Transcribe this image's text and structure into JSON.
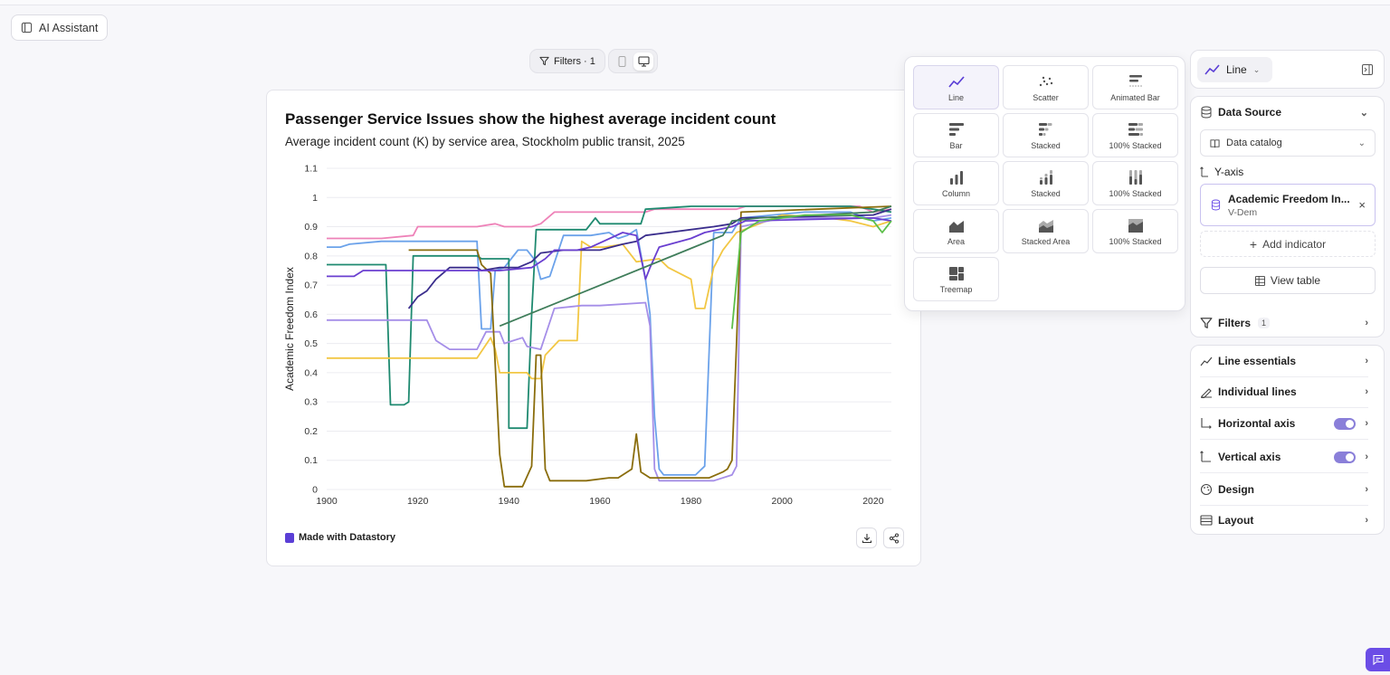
{
  "toolbar": {
    "ai_assistant_label": "AI Assistant",
    "filters_label": "Filters · 1"
  },
  "chart_card": {
    "title": "Passenger Service Issues show the highest average incident count",
    "subtitle": "Average incident count (K) by service area, Stockholm public transit, 2025",
    "brand_label": "Made with Datastory"
  },
  "chart_types": [
    {
      "label": "Line",
      "icon": "line-chart-icon",
      "selected": true
    },
    {
      "label": "Scatter",
      "icon": "scatter-icon"
    },
    {
      "label": "Animated Bar",
      "icon": "animated-bar-icon"
    },
    {
      "label": "Bar",
      "icon": "bar-icon"
    },
    {
      "label": "Stacked",
      "icon": "stacked-bar-icon"
    },
    {
      "label": "100% Stacked",
      "icon": "stacked-100-bar-icon"
    },
    {
      "label": "Column",
      "icon": "column-icon"
    },
    {
      "label": "Stacked",
      "icon": "stacked-column-icon"
    },
    {
      "label": "100% Stacked",
      "icon": "stacked-100-column-icon"
    },
    {
      "label": "Area",
      "icon": "area-icon"
    },
    {
      "label": "Stacked Area",
      "icon": "stacked-area-icon"
    },
    {
      "label": "100% Stacked",
      "icon": "stacked-100-area-icon"
    },
    {
      "label": "Treemap",
      "icon": "treemap-icon"
    }
  ],
  "sidebar": {
    "chart_type_label": "Line",
    "data_source_label": "Data Source",
    "data_catalog_label": "Data catalog",
    "y_axis_label": "Y-axis",
    "indicator_name": "Academic Freedom In...",
    "indicator_source": "V-Dem",
    "add_indicator_label": "Add indicator",
    "view_table_label": "View table",
    "filters_label": "Filters",
    "filters_count": "1",
    "sections": [
      {
        "label": "Line essentials",
        "icon": "line-essentials-icon"
      },
      {
        "label": "Individual lines",
        "icon": "individual-lines-icon"
      },
      {
        "label": "Horizontal axis",
        "icon": "horizontal-axis-icon",
        "toggle": true
      },
      {
        "label": "Vertical axis",
        "icon": "vertical-axis-icon",
        "toggle": true
      },
      {
        "label": "Design",
        "icon": "palette-icon"
      },
      {
        "label": "Layout",
        "icon": "layout-icon"
      }
    ]
  },
  "chart_data": {
    "type": "line",
    "title": "Passenger Service Issues show the highest average incident count",
    "subtitle": "Average incident count (K) by service area, Stockholm public transit, 2025",
    "xlabel": "",
    "ylabel": "Academic Freedom Index",
    "xlim": [
      1900,
      2024
    ],
    "ylim": [
      0,
      1.1
    ],
    "x_ticks": [
      1900,
      1920,
      1940,
      1960,
      1980,
      2000,
      2020
    ],
    "y_ticks": [
      0,
      0.1,
      0.2,
      0.3,
      0.4,
      0.5,
      0.6,
      0.7,
      0.8,
      0.9,
      1,
      1.1
    ],
    "grid": true,
    "legend": "none",
    "series": [
      {
        "color": "#ee82b8",
        "points": [
          [
            1900,
            0.86
          ],
          [
            1912,
            0.86
          ],
          [
            1919,
            0.87
          ],
          [
            1920,
            0.9
          ],
          [
            1933,
            0.9
          ],
          [
            1937,
            0.91
          ],
          [
            1939,
            0.9
          ],
          [
            1945,
            0.9
          ],
          [
            1947,
            0.91
          ],
          [
            1950,
            0.95
          ],
          [
            1970,
            0.95
          ],
          [
            1972,
            0.96
          ],
          [
            1990,
            0.96
          ],
          [
            1992,
            0.97
          ],
          [
            2017,
            0.97
          ],
          [
            2020,
            0.95
          ],
          [
            2024,
            0.96
          ]
        ]
      },
      {
        "color": "#6ba2ea",
        "points": [
          [
            1900,
            0.83
          ],
          [
            1903,
            0.83
          ],
          [
            1905,
            0.84
          ],
          [
            1912,
            0.85
          ],
          [
            1933,
            0.85
          ],
          [
            1934,
            0.55
          ],
          [
            1936,
            0.55
          ],
          [
            1937,
            0.75
          ],
          [
            1939,
            0.76
          ],
          [
            1940,
            0.78
          ],
          [
            1942,
            0.82
          ],
          [
            1944,
            0.82
          ],
          [
            1946,
            0.78
          ],
          [
            1947,
            0.72
          ],
          [
            1949,
            0.73
          ],
          [
            1952,
            0.87
          ],
          [
            1958,
            0.87
          ],
          [
            1962,
            0.88
          ],
          [
            1964,
            0.86
          ],
          [
            1966,
            0.87
          ],
          [
            1968,
            0.89
          ],
          [
            1970,
            0.72
          ],
          [
            1971,
            0.6
          ],
          [
            1972,
            0.25
          ],
          [
            1973,
            0.07
          ],
          [
            1974,
            0.05
          ],
          [
            1981,
            0.05
          ],
          [
            1983,
            0.08
          ],
          [
            1985,
            0.88
          ],
          [
            1989,
            0.88
          ],
          [
            1991,
            0.93
          ],
          [
            2005,
            0.95
          ],
          [
            2015,
            0.95
          ],
          [
            2020,
            0.92
          ],
          [
            2024,
            0.93
          ]
        ]
      },
      {
        "color": "#1f8a70",
        "points": [
          [
            1900,
            0.77
          ],
          [
            1913,
            0.77
          ],
          [
            1914,
            0.29
          ],
          [
            1917,
            0.29
          ],
          [
            1918,
            0.3
          ],
          [
            1919,
            0.8
          ],
          [
            1933,
            0.8
          ],
          [
            1934,
            0.79
          ],
          [
            1940,
            0.79
          ],
          [
            1940,
            0.21
          ],
          [
            1944,
            0.21
          ],
          [
            1945,
            0.6
          ],
          [
            1946,
            0.89
          ],
          [
            1957,
            0.89
          ],
          [
            1959,
            0.93
          ],
          [
            1960,
            0.91
          ],
          [
            1969,
            0.91
          ],
          [
            1970,
            0.96
          ],
          [
            1980,
            0.97
          ],
          [
            1990,
            0.97
          ],
          [
            2015,
            0.97
          ],
          [
            2020,
            0.96
          ],
          [
            2024,
            0.95
          ]
        ]
      },
      {
        "color": "#f2c744",
        "points": [
          [
            1900,
            0.45
          ],
          [
            1933,
            0.45
          ],
          [
            1936,
            0.52
          ],
          [
            1937,
            0.48
          ],
          [
            1938,
            0.4
          ],
          [
            1944,
            0.4
          ],
          [
            1945,
            0.38
          ],
          [
            1947,
            0.38
          ],
          [
            1948,
            0.46
          ],
          [
            1951,
            0.51
          ],
          [
            1955,
            0.51
          ],
          [
            1956,
            0.85
          ],
          [
            1958,
            0.83
          ],
          [
            1961,
            0.83
          ],
          [
            1965,
            0.84
          ],
          [
            1968,
            0.78
          ],
          [
            1973,
            0.79
          ],
          [
            1975,
            0.76
          ],
          [
            1980,
            0.72
          ],
          [
            1981,
            0.62
          ],
          [
            1983,
            0.62
          ],
          [
            1985,
            0.76
          ],
          [
            1987,
            0.82
          ],
          [
            1990,
            0.88
          ],
          [
            2000,
            0.94
          ],
          [
            2010,
            0.93
          ],
          [
            2015,
            0.92
          ],
          [
            2020,
            0.9
          ],
          [
            2024,
            0.92
          ]
        ]
      },
      {
        "color": "#a58ee8",
        "points": [
          [
            1900,
            0.58
          ],
          [
            1922,
            0.58
          ],
          [
            1924,
            0.51
          ],
          [
            1927,
            0.48
          ],
          [
            1933,
            0.48
          ],
          [
            1935,
            0.54
          ],
          [
            1938,
            0.54
          ],
          [
            1939,
            0.5
          ],
          [
            1941,
            0.51
          ],
          [
            1943,
            0.52
          ],
          [
            1944,
            0.49
          ],
          [
            1947,
            0.48
          ],
          [
            1950,
            0.62
          ],
          [
            1956,
            0.63
          ],
          [
            1960,
            0.63
          ],
          [
            1970,
            0.64
          ],
          [
            1971,
            0.56
          ],
          [
            1972,
            0.07
          ],
          [
            1973,
            0.03
          ],
          [
            1985,
            0.03
          ],
          [
            1989,
            0.05
          ],
          [
            1990,
            0.08
          ],
          [
            1991,
            0.9
          ],
          [
            2000,
            0.93
          ],
          [
            2020,
            0.93
          ],
          [
            2024,
            0.94
          ]
        ]
      },
      {
        "color": "#8a6d0c",
        "points": [
          [
            1918,
            0.82
          ],
          [
            1933,
            0.82
          ],
          [
            1934,
            0.77
          ],
          [
            1936,
            0.74
          ],
          [
            1938,
            0.12
          ],
          [
            1939,
            0.01
          ],
          [
            1943,
            0.01
          ],
          [
            1945,
            0.08
          ],
          [
            1946,
            0.46
          ],
          [
            1947,
            0.46
          ],
          [
            1948,
            0.07
          ],
          [
            1949,
            0.03
          ],
          [
            1957,
            0.03
          ],
          [
            1962,
            0.04
          ],
          [
            1964,
            0.04
          ],
          [
            1967,
            0.07
          ],
          [
            1968,
            0.19
          ],
          [
            1969,
            0.06
          ],
          [
            1971,
            0.04
          ],
          [
            1984,
            0.04
          ],
          [
            1987,
            0.06
          ],
          [
            1988,
            0.07
          ],
          [
            1989,
            0.1
          ],
          [
            1990,
            0.5
          ],
          [
            1991,
            0.95
          ],
          [
            2024,
            0.97
          ]
        ]
      },
      {
        "color": "#3a2d8c",
        "points": [
          [
            1918,
            0.62
          ],
          [
            1920,
            0.66
          ],
          [
            1922,
            0.68
          ],
          [
            1924,
            0.72
          ],
          [
            1927,
            0.76
          ],
          [
            1933,
            0.76
          ],
          [
            1934,
            0.75
          ],
          [
            1938,
            0.76
          ],
          [
            1942,
            0.76
          ],
          [
            1945,
            0.78
          ],
          [
            1947,
            0.81
          ],
          [
            1952,
            0.82
          ],
          [
            1960,
            0.82
          ],
          [
            1965,
            0.84
          ],
          [
            1968,
            0.85
          ],
          [
            1970,
            0.87
          ],
          [
            1975,
            0.88
          ],
          [
            1985,
            0.9
          ],
          [
            1989,
            0.91
          ],
          [
            1991,
            0.93
          ],
          [
            2020,
            0.94
          ],
          [
            2024,
            0.96
          ]
        ]
      },
      {
        "color": "#6a3fd0",
        "points": [
          [
            1900,
            0.73
          ],
          [
            1906,
            0.73
          ],
          [
            1908,
            0.75
          ],
          [
            1920,
            0.75
          ],
          [
            1935,
            0.75
          ],
          [
            1938,
            0.75
          ],
          [
            1945,
            0.76
          ],
          [
            1948,
            0.79
          ],
          [
            1950,
            0.82
          ],
          [
            1955,
            0.82
          ],
          [
            1958,
            0.83
          ],
          [
            1965,
            0.88
          ],
          [
            1968,
            0.87
          ],
          [
            1970,
            0.72
          ],
          [
            1971,
            0.76
          ],
          [
            1973,
            0.83
          ],
          [
            1980,
            0.86
          ],
          [
            1983,
            0.88
          ],
          [
            1989,
            0.9
          ],
          [
            1992,
            0.92
          ],
          [
            2020,
            0.93
          ],
          [
            2024,
            0.92
          ]
        ]
      },
      {
        "color": "#3f7d5a",
        "points": [
          [
            1938,
            0.56
          ],
          [
            1987,
            0.87
          ],
          [
            1989,
            0.92
          ],
          [
            1995,
            0.93
          ],
          [
            2020,
            0.95
          ],
          [
            2024,
            0.97
          ]
        ]
      },
      {
        "color": "#5cbf4a",
        "points": [
          [
            1989,
            0.55
          ],
          [
            1991,
            0.88
          ],
          [
            1995,
            0.92
          ],
          [
            2005,
            0.94
          ],
          [
            2015,
            0.94
          ],
          [
            2020,
            0.92
          ],
          [
            2022,
            0.88
          ],
          [
            2024,
            0.92
          ]
        ]
      }
    ]
  }
}
